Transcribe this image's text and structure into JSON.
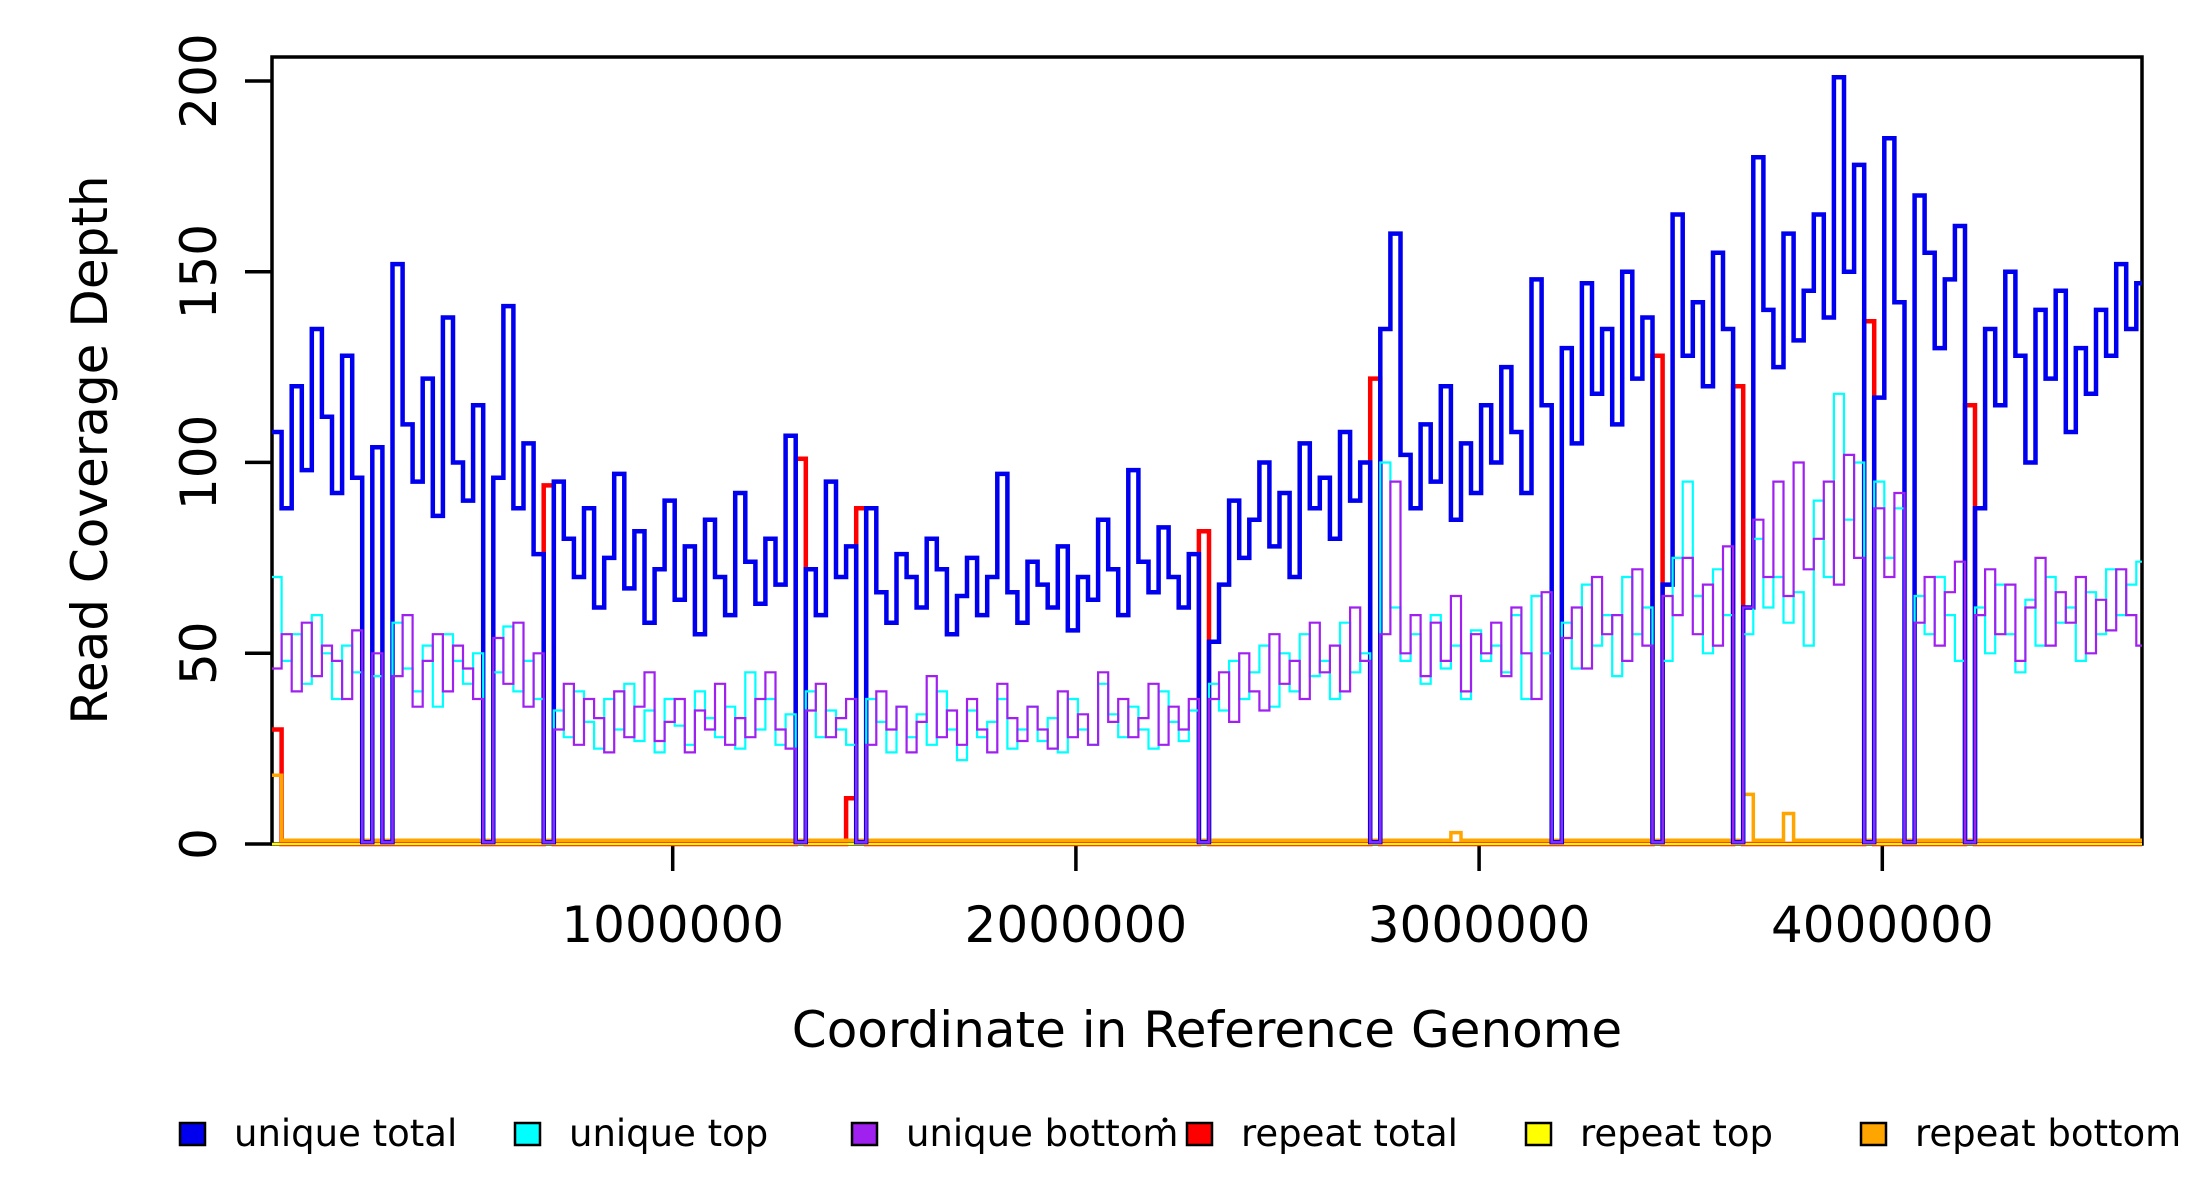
{
  "chart_data": {
    "type": "line",
    "style": "step",
    "title": "",
    "xlabel": "Coordinate in Reference Genome",
    "ylabel": "Read Coverage Depth",
    "xlim": [
      0,
      4650000
    ],
    "ylim": [
      0,
      206
    ],
    "grid": false,
    "legend_position": "bottom",
    "xtick_labels": [
      "1000000",
      "2000000",
      "3000000",
      "4000000"
    ],
    "xtick_values": [
      1000000,
      2000000,
      3000000,
      4000000
    ],
    "ytick_labels": [
      "0",
      "50",
      "100",
      "150",
      "200"
    ],
    "ytick_values": [
      0,
      50,
      100,
      150,
      200
    ],
    "bin_start": 5000,
    "bin_size": 25000,
    "series": [
      {
        "name": "unique total",
        "color": "#0000EE",
        "line_width": 4.5,
        "values": [
          108,
          88,
          120,
          98,
          135,
          112,
          92,
          128,
          96,
          0.5,
          104,
          0.5,
          152,
          110,
          95,
          122,
          86,
          138,
          100,
          90,
          115,
          0.5,
          96,
          141,
          88,
          105,
          76,
          0.5,
          95,
          80,
          70,
          88,
          62,
          75,
          97,
          67,
          82,
          58,
          72,
          90,
          64,
          78,
          55,
          85,
          70,
          60,
          92,
          74,
          63,
          80,
          68,
          107,
          0.5,
          72,
          60,
          95,
          70,
          78,
          0.5,
          88,
          66,
          58,
          76,
          70,
          62,
          80,
          72,
          55,
          65,
          75,
          60,
          70,
          97,
          66,
          58,
          74,
          68,
          62,
          78,
          56,
          70,
          64,
          85,
          72,
          60,
          98,
          74,
          66,
          83,
          70,
          62,
          76,
          0.5,
          53,
          68,
          90,
          75,
          85,
          100,
          78,
          92,
          70,
          105,
          88,
          96,
          80,
          108,
          90,
          100,
          0.5,
          135,
          160,
          102,
          88,
          110,
          95,
          120,
          85,
          105,
          92,
          115,
          100,
          125,
          108,
          92,
          148,
          115,
          0.5,
          130,
          105,
          147,
          118,
          135,
          110,
          150,
          122,
          138,
          0.5,
          68,
          165,
          128,
          142,
          120,
          155,
          135,
          0.5,
          62,
          180,
          140,
          125,
          160,
          132,
          145,
          165,
          138,
          201,
          150,
          178,
          0.5,
          117,
          185,
          142,
          0.5,
          170,
          155,
          130,
          148,
          162,
          0.5,
          88,
          135,
          115,
          150,
          128,
          100,
          140,
          122,
          145,
          108,
          130,
          118,
          140,
          128,
          152,
          135,
          147
        ]
      },
      {
        "name": "unique top",
        "color": "#00FFFF",
        "line_width": 2.2,
        "values": [
          70,
          48,
          55,
          42,
          60,
          50,
          38,
          52,
          45,
          0.5,
          44,
          0.5,
          58,
          46,
          40,
          52,
          36,
          55,
          48,
          42,
          50,
          0.5,
          45,
          57,
          40,
          48,
          38,
          0.5,
          35,
          28,
          40,
          32,
          25,
          38,
          30,
          42,
          27,
          35,
          24,
          38,
          31,
          26,
          40,
          33,
          28,
          36,
          25,
          45,
          30,
          38,
          26,
          34,
          0.5,
          40,
          28,
          35,
          30,
          26,
          0.5,
          38,
          32,
          24,
          36,
          28,
          34,
          26,
          40,
          30,
          22,
          35,
          28,
          32,
          38,
          25,
          30,
          36,
          27,
          33,
          24,
          38,
          30,
          26,
          42,
          34,
          28,
          36,
          30,
          25,
          40,
          32,
          27,
          35,
          0.5,
          42,
          35,
          48,
          38,
          45,
          52,
          36,
          50,
          40,
          55,
          44,
          48,
          38,
          58,
          45,
          50,
          0.5,
          100,
          62,
          48,
          55,
          42,
          60,
          46,
          52,
          38,
          56,
          48,
          52,
          45,
          60,
          38,
          65,
          50,
          0.5,
          58,
          46,
          68,
          52,
          60,
          44,
          70,
          55,
          62,
          0.5,
          48,
          75,
          95,
          65,
          50,
          72,
          60,
          0.5,
          55,
          80,
          62,
          70,
          58,
          66,
          52,
          90,
          70,
          118,
          85,
          100,
          0.5,
          95,
          75,
          88,
          0.5,
          65,
          55,
          70,
          60,
          48,
          0.5,
          62,
          50,
          68,
          55,
          45,
          64,
          52,
          70,
          58,
          62,
          48,
          66,
          55,
          72,
          60,
          68,
          74
        ]
      },
      {
        "name": "unique bottom",
        "color": "#A020F0",
        "line_width": 2.2,
        "values": [
          46,
          55,
          40,
          58,
          44,
          52,
          48,
          38,
          56,
          0.5,
          50,
          0.5,
          44,
          60,
          36,
          48,
          55,
          40,
          52,
          46,
          38,
          0.5,
          54,
          42,
          58,
          36,
          50,
          0.5,
          30,
          42,
          26,
          38,
          33,
          24,
          40,
          28,
          36,
          45,
          27,
          32,
          38,
          24,
          35,
          30,
          42,
          26,
          33,
          28,
          38,
          45,
          30,
          25,
          0.5,
          35,
          42,
          28,
          33,
          38,
          0.5,
          26,
          40,
          30,
          36,
          24,
          32,
          44,
          28,
          35,
          26,
          38,
          30,
          24,
          42,
          33,
          27,
          36,
          30,
          25,
          40,
          28,
          34,
          26,
          45,
          32,
          38,
          28,
          33,
          42,
          26,
          36,
          30,
          38,
          0.5,
          38,
          45,
          32,
          50,
          40,
          35,
          55,
          42,
          48,
          38,
          58,
          45,
          52,
          40,
          62,
          48,
          0.5,
          55,
          95,
          50,
          60,
          44,
          58,
          48,
          65,
          40,
          55,
          50,
          58,
          44,
          62,
          50,
          38,
          66,
          0.5,
          54,
          62,
          46,
          70,
          55,
          60,
          48,
          72,
          52,
          0.5,
          65,
          60,
          75,
          55,
          68,
          52,
          78,
          0.5,
          62,
          85,
          70,
          95,
          65,
          100,
          72,
          80,
          95,
          68,
          102,
          75,
          0.5,
          88,
          70,
          92,
          0.5,
          58,
          70,
          52,
          66,
          74,
          0.5,
          60,
          72,
          55,
          68,
          48,
          62,
          75,
          52,
          66,
          58,
          70,
          50,
          64,
          56,
          72,
          60,
          52
        ]
      },
      {
        "name": "repeat total",
        "color": "#FF0000",
        "line_width": 4.5,
        "values_sparse": {
          "length": 186,
          "default": 0,
          "overrides": {
            "0": 30,
            "27": 94,
            "52": 101,
            "57": 12,
            "58": 88,
            "92": 82,
            "109": 122,
            "137": 128,
            "145": 120,
            "158": 137,
            "168": 115
          }
        }
      },
      {
        "name": "repeat top",
        "color": "#FFFF00",
        "line_width": 2.5,
        "values_sparse": {
          "length": 186,
          "default": 0,
          "overrides": {}
        }
      },
      {
        "name": "repeat bottom",
        "color": "#FFA500",
        "line_width": 3.5,
        "values_sparse": {
          "length": 186,
          "default": 1,
          "overrides": {
            "0": 18,
            "117": 3,
            "146": 13,
            "150": 8
          }
        }
      }
    ]
  }
}
